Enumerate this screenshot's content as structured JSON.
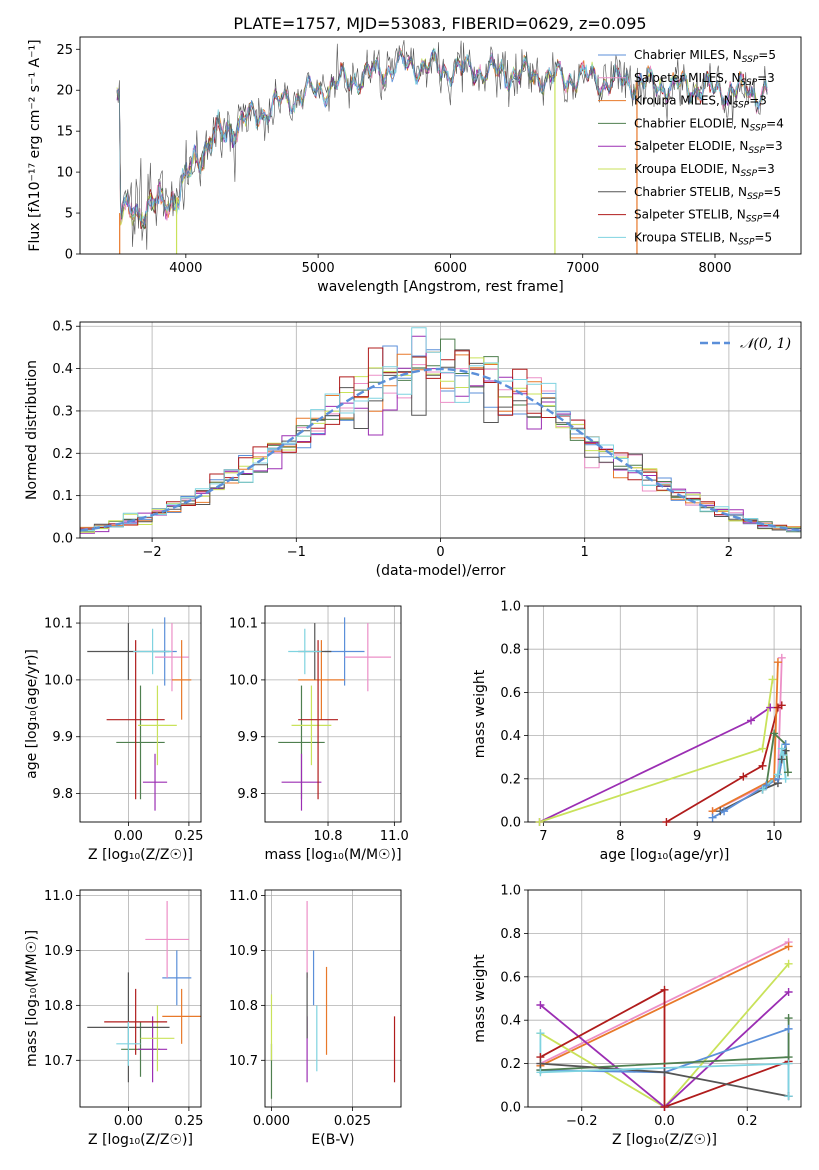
{
  "figure": {
    "title": "PLATE=1757, MJD=53083, FIBERID=0629, z=0.095"
  },
  "models": [
    {
      "name": "Chabrier MILES",
      "nssp": "5",
      "color": "#5b8fd9"
    },
    {
      "name": "Salpeter MILES",
      "nssp": "3",
      "color": "#ec8fc7"
    },
    {
      "name": "Kroupa MILES",
      "nssp": "3",
      "color": "#e8792a"
    },
    {
      "name": "Chabrier ELODIE",
      "nssp": "4",
      "color": "#4f7f4f"
    },
    {
      "name": "Salpeter ELODIE",
      "nssp": "3",
      "color": "#9b2eb3"
    },
    {
      "name": "Kroupa ELODIE",
      "nssp": "3",
      "color": "#c9e25a"
    },
    {
      "name": "Chabrier STELIB",
      "nssp": "5",
      "color": "#555555"
    },
    {
      "name": "Salpeter STELIB",
      "nssp": "4",
      "color": "#b01c1c"
    },
    {
      "name": "Kroupa STELIB",
      "nssp": "5",
      "color": "#7fd3e0"
    }
  ],
  "chart_data": [
    {
      "id": "spectrum",
      "type": "line",
      "xlabel": "wavelength [Angstrom, rest frame]",
      "ylabel": "Flux [fλ10⁻¹⁷ erg cm⁻² s⁻¹ A⁻¹]",
      "xlim": [
        3200,
        8650
      ],
      "ylim": [
        0,
        26.5
      ],
      "xticks": [
        4000,
        5000,
        6000,
        7000,
        8000
      ],
      "yticks": [
        0,
        5,
        10,
        15,
        20,
        25
      ],
      "grid": false,
      "legend": "right",
      "continuum": {
        "x": [
          3500,
          3700,
          3850,
          3950,
          4050,
          4200,
          4400,
          4600,
          4800,
          5000,
          5200,
          5400,
          5600,
          5800,
          6000,
          6200,
          6400,
          6600,
          6800,
          7000,
          7200,
          7400,
          7600,
          7800,
          8000,
          8200,
          8400
        ],
        "y": [
          5.0,
          5.5,
          6.5,
          7.0,
          11.0,
          14.0,
          16.0,
          17.5,
          19.0,
          20.0,
          21.0,
          22.0,
          23.0,
          23.0,
          22.5,
          22.5,
          22.0,
          22.0,
          21.5,
          21.5,
          21.0,
          21.0,
          20.5,
          20.5,
          20.0,
          20.0,
          19.5
        ]
      },
      "spikes": [
        {
          "x": 3500,
          "y": 0,
          "model": "Kroupa MILES"
        },
        {
          "x": 3930,
          "y": 0,
          "model": "Kroupa ELODIE"
        },
        {
          "x": 6790,
          "y": 0,
          "model": "Kroupa ELODIE"
        },
        {
          "x": 7410,
          "y": 0,
          "model": "Kroupa MILES"
        }
      ]
    },
    {
      "id": "residuals",
      "type": "histogram",
      "xlabel": "(data-model)/error",
      "ylabel": "Normed distribution",
      "xlim": [
        -2.5,
        2.5
      ],
      "ylim": [
        0,
        0.51
      ],
      "xticks": [
        -2,
        -1,
        0,
        1,
        2
      ],
      "yticks": [
        0.0,
        0.1,
        0.2,
        0.3,
        0.4,
        0.5
      ],
      "grid": true,
      "legend": "top-right",
      "reference_label": "𝒩(0, 1)",
      "reference_color": "#5b8fd9",
      "bin_width": 0.1
    },
    {
      "id": "age-vs-Z",
      "type": "errorbar",
      "xlabel": "Z [log₁₀(Z/Z☉)]",
      "ylabel": "age  [log₁₀(age/yr)]",
      "xlim": [
        -0.2,
        0.3
      ],
      "ylim": [
        9.75,
        10.13
      ],
      "xticks": [
        0.0,
        0.25
      ],
      "yticks": [
        9.8,
        9.9,
        10.0,
        10.1
      ],
      "grid": true,
      "points": [
        {
          "model": "Chabrier MILES",
          "x": 0.15,
          "xerr": 0.05,
          "y": 10.05,
          "yerr": 0.06
        },
        {
          "model": "Salpeter MILES",
          "x": 0.18,
          "xerr": 0.07,
          "y": 10.04,
          "yerr": 0.06
        },
        {
          "model": "Kroupa MILES",
          "x": 0.22,
          "xerr": 0.04,
          "y": 10.0,
          "yerr": 0.07
        },
        {
          "model": "Chabrier ELODIE",
          "x": 0.05,
          "xerr": 0.1,
          "y": 9.89,
          "yerr": 0.1
        },
        {
          "model": "Salpeter ELODIE",
          "x": 0.11,
          "xerr": 0.05,
          "y": 9.82,
          "yerr": 0.05
        },
        {
          "model": "Kroupa ELODIE",
          "x": 0.12,
          "xerr": 0.08,
          "y": 9.92,
          "yerr": 0.07
        },
        {
          "model": "Chabrier STELIB",
          "x": 0.0,
          "xerr": 0.17,
          "y": 10.05,
          "yerr": 0.05
        },
        {
          "model": "Salpeter STELIB",
          "x": 0.03,
          "xerr": 0.12,
          "y": 9.93,
          "yerr": 0.14
        },
        {
          "model": "Kroupa STELIB",
          "x": 0.1,
          "xerr": 0.08,
          "y": 10.05,
          "yerr": 0.04
        }
      ]
    },
    {
      "id": "age-vs-mass",
      "type": "errorbar",
      "xlabel": "mass [log₁₀(M/M☉)]",
      "ylabel": "",
      "xlim": [
        10.61,
        11.02
      ],
      "ylim": [
        9.75,
        10.13
      ],
      "xticks": [
        10.8,
        11.0
      ],
      "yticks": [
        9.8,
        9.9,
        10.0,
        10.1
      ],
      "grid": true,
      "points": [
        {
          "model": "Chabrier MILES",
          "x": 10.85,
          "xerr": 0.06,
          "y": 10.05,
          "yerr": 0.06
        },
        {
          "model": "Salpeter MILES",
          "x": 10.92,
          "xerr": 0.07,
          "y": 10.04,
          "yerr": 0.06
        },
        {
          "model": "Kroupa MILES",
          "x": 10.78,
          "xerr": 0.07,
          "y": 10.0,
          "yerr": 0.07
        },
        {
          "model": "Chabrier ELODIE",
          "x": 10.72,
          "xerr": 0.07,
          "y": 9.89,
          "yerr": 0.1
        },
        {
          "model": "Salpeter ELODIE",
          "x": 10.72,
          "xerr": 0.06,
          "y": 9.82,
          "yerr": 0.05
        },
        {
          "model": "Kroupa ELODIE",
          "x": 10.75,
          "xerr": 0.06,
          "y": 9.92,
          "yerr": 0.07
        },
        {
          "model": "Chabrier STELIB",
          "x": 10.76,
          "xerr": 0.05,
          "y": 10.05,
          "yerr": 0.05
        },
        {
          "model": "Salpeter STELIB",
          "x": 10.77,
          "xerr": 0.06,
          "y": 9.93,
          "yerr": 0.14
        },
        {
          "model": "Kroupa STELIB",
          "x": 10.73,
          "xerr": 0.05,
          "y": 10.05,
          "yerr": 0.04
        }
      ]
    },
    {
      "id": "weight-vs-age",
      "type": "line",
      "xlabel": "age  [log₁₀(age/yr)]",
      "ylabel": "mass weight",
      "xlim": [
        6.8,
        10.35
      ],
      "ylim": [
        0,
        1.0
      ],
      "xticks": [
        7,
        8,
        9,
        10
      ],
      "yticks": [
        0.0,
        0.2,
        0.4,
        0.6,
        0.8,
        1.0
      ],
      "grid": true,
      "series": [
        {
          "model": "Salpeter ELODIE",
          "x": [
            6.95,
            9.7,
            9.95
          ],
          "y": [
            0.0,
            0.47,
            0.53
          ]
        },
        {
          "model": "Kroupa ELODIE",
          "x": [
            6.95,
            9.85,
            9.98
          ],
          "y": [
            0.0,
            0.34,
            0.66
          ]
        },
        {
          "model": "Salpeter STELIB",
          "x": [
            8.6,
            9.6,
            9.85,
            10.05,
            10.1
          ],
          "y": [
            0.0,
            0.21,
            0.26,
            0.53,
            0.54
          ]
        },
        {
          "model": "Salpeter MILES",
          "x": [
            9.2,
            10.05,
            10.1
          ],
          "y": [
            0.05,
            0.2,
            0.76
          ]
        },
        {
          "model": "Kroupa MILES",
          "x": [
            9.2,
            10.0,
            10.05
          ],
          "y": [
            0.05,
            0.2,
            0.74
          ]
        },
        {
          "model": "Chabrier ELODIE",
          "x": [
            9.9,
            10.0,
            10.15,
            10.18
          ],
          "y": [
            0.17,
            0.41,
            0.36,
            0.23
          ]
        },
        {
          "model": "Chabrier STELIB",
          "x": [
            9.3,
            9.85,
            10.05,
            10.1,
            10.15
          ],
          "y": [
            0.05,
            0.15,
            0.18,
            0.29,
            0.33
          ]
        },
        {
          "model": "Chabrier MILES",
          "x": [
            9.2,
            9.35,
            9.9,
            10.05,
            10.15
          ],
          "y": [
            0.02,
            0.05,
            0.17,
            0.2,
            0.36
          ]
        },
        {
          "model": "Kroupa STELIB",
          "x": [
            9.85,
            10.05,
            10.1,
            10.12,
            10.15
          ],
          "y": [
            0.15,
            0.22,
            0.34,
            0.31,
            0.2
          ]
        }
      ]
    },
    {
      "id": "mass-vs-Z",
      "type": "errorbar",
      "xlabel": "Z [log₁₀(Z/Z☉)]",
      "ylabel": "mass [log₁₀(M/M☉)]",
      "xlim": [
        -0.2,
        0.3
      ],
      "ylim": [
        10.615,
        11.01
      ],
      "xticks": [
        0.0,
        0.25
      ],
      "yticks": [
        10.7,
        10.8,
        10.9,
        11.0
      ],
      "grid": true,
      "points": [
        {
          "model": "Chabrier MILES",
          "x": 0.2,
          "xerr": 0.06,
          "y": 10.85,
          "yerr": 0.05
        },
        {
          "model": "Salpeter MILES",
          "x": 0.16,
          "xerr": 0.09,
          "y": 10.92,
          "yerr": 0.07
        },
        {
          "model": "Kroupa MILES",
          "x": 0.22,
          "xerr": 0.08,
          "y": 10.78,
          "yerr": 0.05
        },
        {
          "model": "Chabrier ELODIE",
          "x": 0.05,
          "xerr": 0.08,
          "y": 10.72,
          "yerr": 0.05
        },
        {
          "model": "Salpeter ELODIE",
          "x": 0.1,
          "xerr": 0.06,
          "y": 10.72,
          "yerr": 0.06
        },
        {
          "model": "Kroupa ELODIE",
          "x": 0.12,
          "xerr": 0.07,
          "y": 10.74,
          "yerr": 0.06
        },
        {
          "model": "Chabrier STELIB",
          "x": 0.0,
          "xerr": 0.17,
          "y": 10.76,
          "yerr": 0.1
        },
        {
          "model": "Salpeter STELIB",
          "x": 0.03,
          "xerr": 0.13,
          "y": 10.77,
          "yerr": 0.06
        },
        {
          "model": "Kroupa STELIB",
          "x": 0.0,
          "xerr": 0.05,
          "y": 10.73,
          "yerr": 0.04
        }
      ]
    },
    {
      "id": "mass-vs-EBV",
      "type": "errorbar",
      "xlabel": "E(B-V)",
      "ylabel": "",
      "xlim": [
        -0.002,
        0.04
      ],
      "ylim": [
        10.615,
        11.01
      ],
      "xticks": [
        0.0,
        0.025
      ],
      "yticks": [
        10.7,
        10.8,
        10.9,
        11.0
      ],
      "grid": true,
      "points": [
        {
          "model": "Chabrier MILES",
          "x": 0.013,
          "y": 10.85,
          "yerr": 0.05
        },
        {
          "model": "Salpeter MILES",
          "x": 0.011,
          "y": 10.92,
          "yerr": 0.07
        },
        {
          "model": "Kroupa MILES",
          "x": 0.017,
          "y": 10.79,
          "yerr": 0.08
        },
        {
          "model": "Chabrier ELODIE",
          "x": 0.0,
          "y": 10.68,
          "yerr": 0.05
        },
        {
          "model": "Salpeter ELODIE",
          "x": 0.011,
          "y": 10.72,
          "yerr": 0.06
        },
        {
          "model": "Kroupa ELODIE",
          "x": 0.0,
          "y": 10.76,
          "yerr": 0.06
        },
        {
          "model": "Chabrier STELIB",
          "x": 0.011,
          "y": 10.8,
          "yerr": 0.06
        },
        {
          "model": "Salpeter STELIB",
          "x": 0.038,
          "y": 10.72,
          "yerr": 0.06
        },
        {
          "model": "Kroupa STELIB",
          "x": 0.014,
          "y": 10.74,
          "yerr": 0.06
        }
      ]
    },
    {
      "id": "weight-vs-Z",
      "type": "line",
      "xlabel": "Z [log₁₀(Z/Z☉)]",
      "ylabel": "mass weight",
      "xlim": [
        -0.33,
        0.33
      ],
      "ylim": [
        0,
        1.0
      ],
      "xticks": [
        -0.2,
        0.0,
        0.2
      ],
      "yticks": [
        0.0,
        0.2,
        0.4,
        0.6,
        0.8,
        1.0
      ],
      "grid": true,
      "series": [
        {
          "model": "Salpeter MILES",
          "x": [
            -0.3,
            0.3
          ],
          "y": [
            0.2,
            0.76
          ]
        },
        {
          "model": "Kroupa MILES",
          "x": [
            -0.3,
            0.3
          ],
          "y": [
            0.19,
            0.74
          ]
        },
        {
          "model": "Kroupa ELODIE",
          "x": [
            -0.3,
            0.0,
            0.3
          ],
          "y": [
            0.34,
            0.0,
            0.66
          ]
        },
        {
          "model": "Salpeter ELODIE",
          "x": [
            -0.3,
            0.0,
            0.3
          ],
          "y": [
            0.47,
            0.0,
            0.53
          ]
        },
        {
          "model": "Salpeter STELIB",
          "x": [
            -0.3,
            0.0,
            0.0,
            0.3
          ],
          "y": [
            0.23,
            0.54,
            0.0,
            0.21
          ]
        },
        {
          "model": "Chabrier MILES",
          "x": [
            -0.3,
            0.0,
            0.3,
            0.3
          ],
          "y": [
            0.17,
            0.16,
            0.36,
            0.05
          ]
        },
        {
          "model": "Chabrier ELODIE",
          "x": [
            -0.3,
            0.3,
            0.3
          ],
          "y": [
            0.17,
            0.23,
            0.41
          ]
        },
        {
          "model": "Chabrier STELIB",
          "x": [
            -0.3,
            0.0,
            0.3
          ],
          "y": [
            0.2,
            0.16,
            0.05
          ]
        },
        {
          "model": "Kroupa STELIB",
          "x": [
            -0.3,
            -0.3,
            0.3,
            0.3
          ],
          "y": [
            0.34,
            0.16,
            0.2,
            0.05
          ]
        }
      ]
    }
  ]
}
